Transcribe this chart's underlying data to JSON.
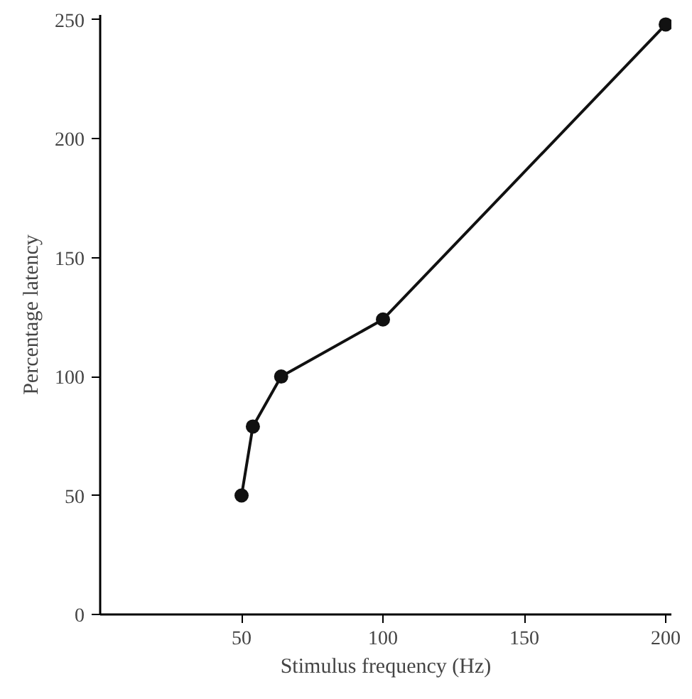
{
  "chart_data": {
    "type": "line",
    "xlabel": "Stimulus frequency (Hz)",
    "ylabel": "Percentage latency",
    "x": [
      50,
      54,
      64,
      100,
      200
    ],
    "values": [
      50,
      79,
      100,
      124,
      248
    ],
    "color": "#111111",
    "marker": "circle",
    "line_style": "solid",
    "grid": false,
    "xlim": [
      0,
      202
    ],
    "xticks": [
      50,
      100,
      150,
      200
    ],
    "ylim": [
      0,
      252
    ],
    "yticks": [
      0,
      50,
      100,
      150,
      200,
      250
    ]
  }
}
